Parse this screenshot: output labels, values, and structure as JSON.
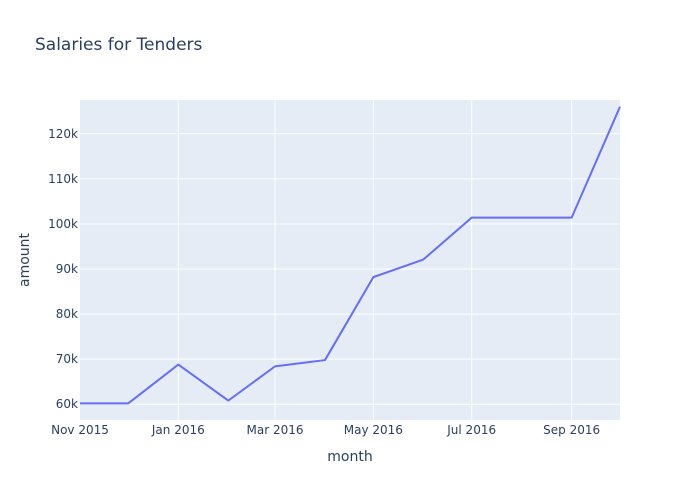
{
  "chart_data": {
    "type": "line",
    "title": "Salaries for Tenders",
    "xlabel": "month",
    "ylabel": "amount",
    "x": [
      "2015-11-01",
      "2015-12-01",
      "2016-01-01",
      "2016-02-01",
      "2016-03-01",
      "2016-04-01",
      "2016-05-01",
      "2016-06-01",
      "2016-07-01",
      "2016-08-01",
      "2016-09-01",
      "2016-10-01"
    ],
    "series": [
      {
        "values": [
          60200,
          60200,
          68800,
          60800,
          68400,
          69800,
          88200,
          92100,
          101400,
          101400,
          101400,
          126000
        ]
      }
    ],
    "xlim": [
      "2015-11-01",
      "2016-10-01"
    ],
    "ylim": [
      56500,
      127500
    ],
    "xticks": [
      {
        "date": "2015-11-01",
        "label": "Nov 2015"
      },
      {
        "date": "2016-01-01",
        "label": "Jan 2016"
      },
      {
        "date": "2016-03-01",
        "label": "Mar 2016"
      },
      {
        "date": "2016-05-01",
        "label": "May 2016"
      },
      {
        "date": "2016-07-01",
        "label": "Jul 2016"
      },
      {
        "date": "2016-09-01",
        "label": "Sep 2016"
      }
    ],
    "yticks": [
      {
        "value": 60000,
        "label": "60k"
      },
      {
        "value": 70000,
        "label": "70k"
      },
      {
        "value": 80000,
        "label": "80k"
      },
      {
        "value": 90000,
        "label": "90k"
      },
      {
        "value": 100000,
        "label": "100k"
      },
      {
        "value": 110000,
        "label": "110k"
      },
      {
        "value": 120000,
        "label": "120k"
      }
    ],
    "grid": true,
    "colors": {
      "line": "#636efa",
      "plot_background": "#e5ecf6",
      "text": "#2a3f5f",
      "grid": "#ffffff"
    }
  }
}
